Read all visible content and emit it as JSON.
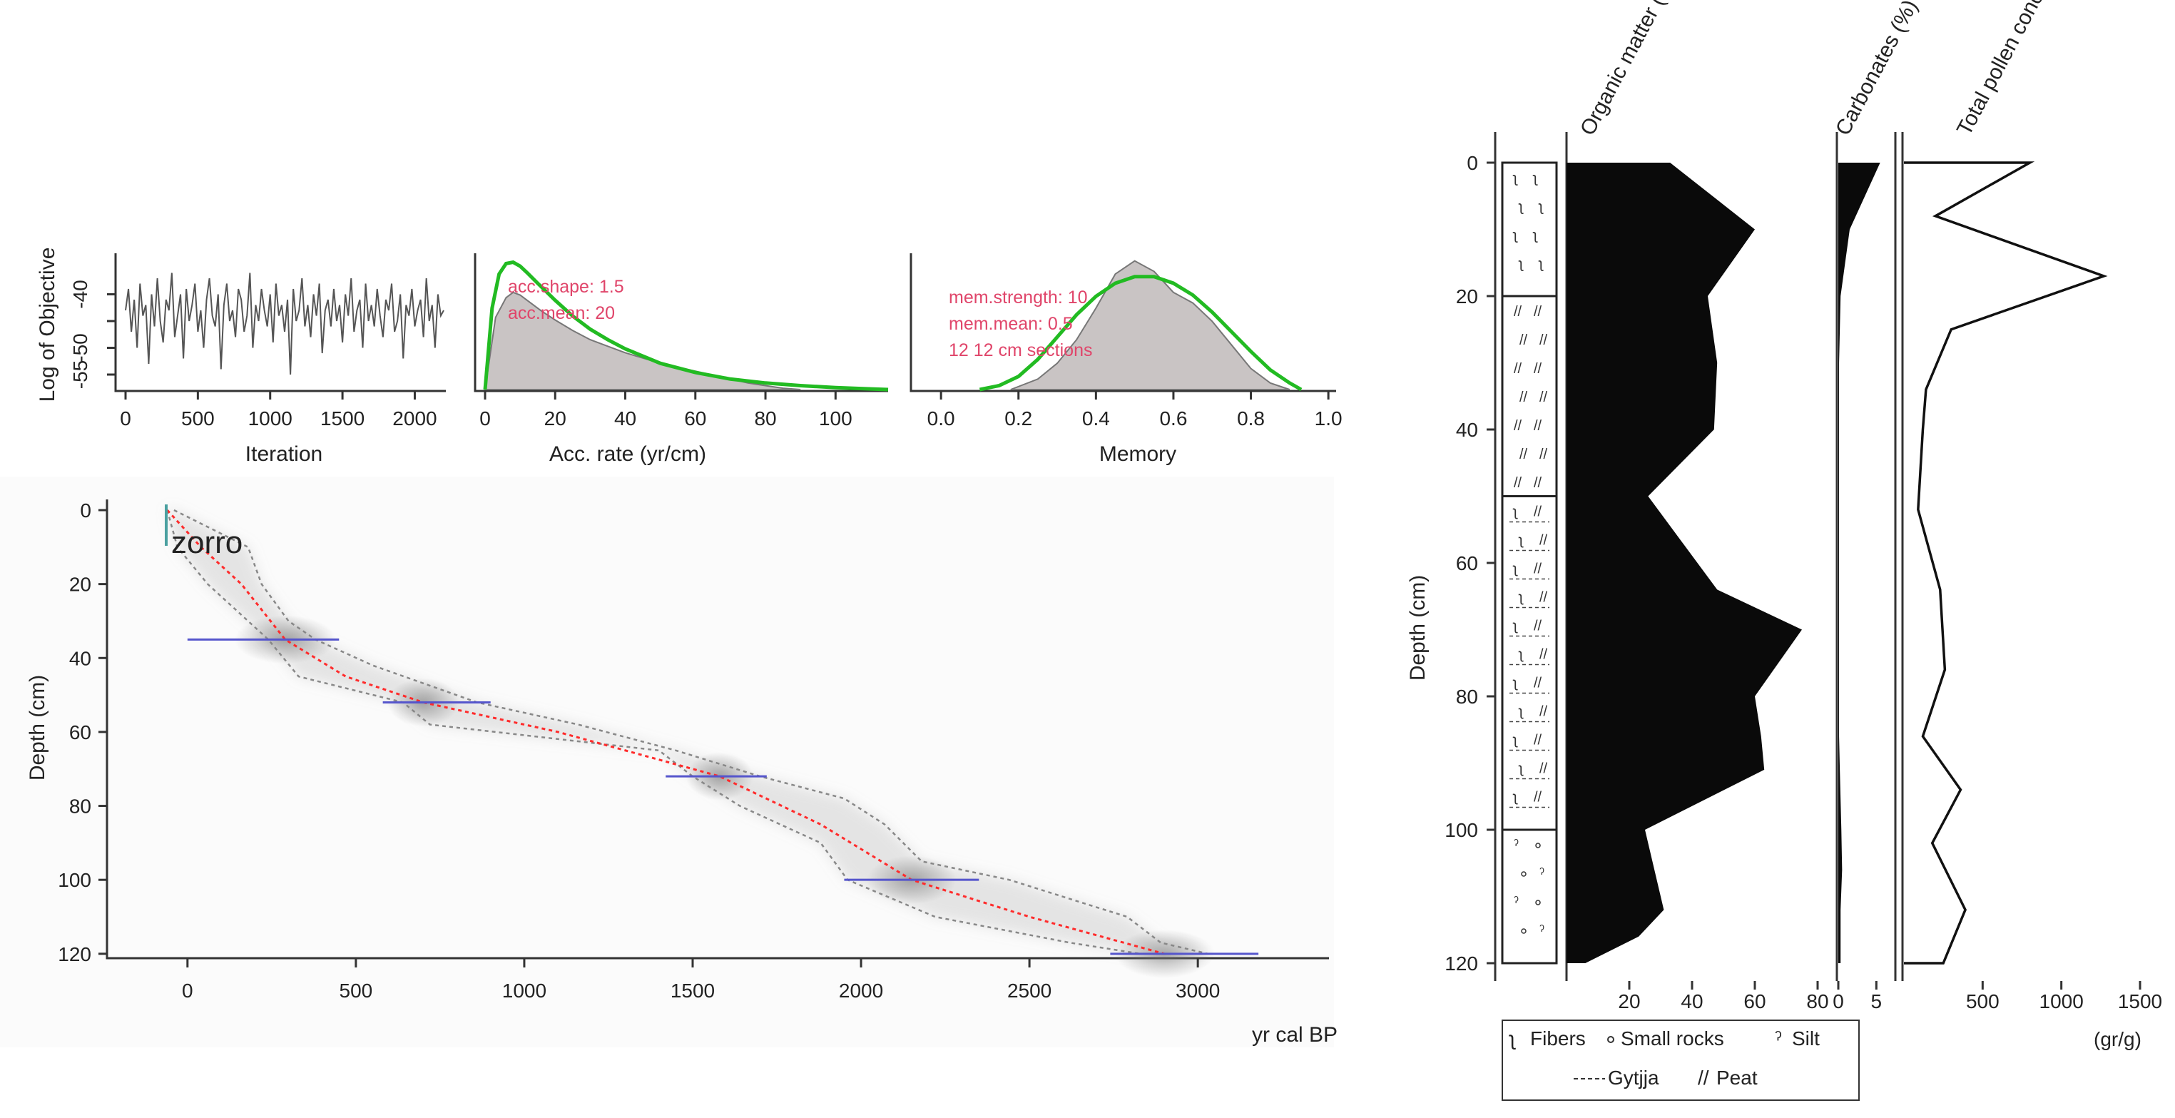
{
  "chart_data": [
    {
      "type": "line",
      "id": "trace",
      "title": "",
      "xlabel": "Iteration",
      "ylabel": "Log of Objective",
      "xlim": [
        0,
        2200
      ],
      "ylim": [
        -57,
        -33
      ],
      "xticks": [
        0,
        500,
        1000,
        1500,
        2000
      ],
      "yticks": [
        -40,
        -45,
        -50,
        -55
      ],
      "ytick_labels": [
        "-40",
        "",
        "-50",
        "-55"
      ],
      "series": [
        {
          "name": "log objective",
          "color": "#555555",
          "x_step": 20,
          "values": [
            -43,
            -39,
            -47,
            -41,
            -50,
            -38,
            -44,
            -42,
            -53,
            -40,
            -46,
            -37,
            -45,
            -49,
            -41,
            -43,
            -36,
            -48,
            -44,
            -40,
            -52,
            -39,
            -45,
            -42,
            -38,
            -47,
            -43,
            -50,
            -41,
            -37,
            -44,
            -46,
            -40,
            -54,
            -42,
            -38,
            -45,
            -43,
            -48,
            -39,
            -41,
            -47,
            -44,
            -36,
            -50,
            -42,
            -45,
            -39,
            -43,
            -46,
            -40,
            -49,
            -38,
            -44,
            -42,
            -47,
            -41,
            -55,
            -39,
            -45,
            -43,
            -37,
            -46,
            -42,
            -48,
            -40,
            -44,
            -38,
            -51,
            -43,
            -41,
            -46,
            -39,
            -45,
            -42,
            -49,
            -40,
            -44,
            -37,
            -47,
            -43,
            -41,
            -50,
            -38,
            -45,
            -42,
            -46,
            -39,
            -44,
            -48,
            -41,
            -43,
            -38,
            -47,
            -45,
            -40,
            -52,
            -42,
            -44,
            -39,
            -46,
            -43,
            -41,
            -48,
            -37,
            -45,
            -42,
            -50,
            -40,
            -44,
            -43
          ]
        }
      ]
    },
    {
      "type": "area",
      "id": "acc-rate",
      "xlabel": "Acc. rate (yr/cm)",
      "xlim": [
        0,
        115
      ],
      "ylim": [
        0,
        1
      ],
      "xticks": [
        0,
        20,
        40,
        60,
        80,
        100
      ],
      "annotations": [
        "acc.shape:  1.5",
        "acc.mean:  20"
      ],
      "series": [
        {
          "name": "posterior",
          "fill": "#c9c4c4",
          "x": [
            0,
            3,
            6,
            8,
            10,
            13,
            16,
            20,
            25,
            30,
            35,
            40,
            45,
            50,
            55,
            60,
            65,
            70,
            75,
            80,
            85,
            90
          ],
          "values": [
            0,
            0.55,
            0.7,
            0.74,
            0.72,
            0.66,
            0.6,
            0.53,
            0.45,
            0.38,
            0.33,
            0.28,
            0.24,
            0.2,
            0.17,
            0.14,
            0.11,
            0.08,
            0.05,
            0.03,
            0.01,
            0
          ]
        },
        {
          "name": "prior",
          "color": "#22bb22",
          "x": [
            0,
            2,
            4,
            6,
            8,
            10,
            12,
            15,
            20,
            25,
            30,
            35,
            40,
            50,
            60,
            70,
            80,
            90,
            100,
            110,
            115
          ],
          "values": [
            0,
            0.62,
            0.88,
            0.96,
            0.97,
            0.94,
            0.89,
            0.81,
            0.68,
            0.56,
            0.46,
            0.38,
            0.31,
            0.2,
            0.13,
            0.08,
            0.05,
            0.03,
            0.015,
            0.005,
            0
          ]
        }
      ]
    },
    {
      "type": "area",
      "id": "memory",
      "xlabel": "Memory",
      "xlim": [
        -0.05,
        1.02
      ],
      "ylim": [
        0,
        1
      ],
      "xticks": [
        0.0,
        0.2,
        0.4,
        0.6,
        0.8,
        1.0
      ],
      "xtick_labels": [
        "0.0",
        "0.2",
        "0.4",
        "0.6",
        "0.8",
        "1.0"
      ],
      "annotations": [
        "mem.strength:  10",
        "mem.mean:  0.5",
        "12 12 cm sections"
      ],
      "series": [
        {
          "name": "posterior",
          "fill": "#c9c4c4",
          "x": [
            0.18,
            0.25,
            0.3,
            0.35,
            0.4,
            0.45,
            0.5,
            0.55,
            0.6,
            0.65,
            0.7,
            0.75,
            0.8,
            0.85,
            0.9
          ],
          "values": [
            0,
            0.08,
            0.2,
            0.38,
            0.62,
            0.88,
            0.98,
            0.9,
            0.74,
            0.66,
            0.52,
            0.34,
            0.16,
            0.05,
            0
          ]
        },
        {
          "name": "prior",
          "color": "#22bb22",
          "x": [
            0.1,
            0.15,
            0.2,
            0.25,
            0.3,
            0.35,
            0.4,
            0.45,
            0.5,
            0.55,
            0.6,
            0.65,
            0.7,
            0.75,
            0.8,
            0.85,
            0.9,
            0.93
          ],
          "values": [
            0,
            0.03,
            0.1,
            0.23,
            0.4,
            0.57,
            0.71,
            0.81,
            0.86,
            0.86,
            0.81,
            0.72,
            0.59,
            0.44,
            0.29,
            0.15,
            0.05,
            0
          ]
        }
      ]
    },
    {
      "type": "line",
      "id": "age-depth",
      "title": "zorro",
      "xlabel": "yr cal BP",
      "ylabel": "Depth (cm)",
      "xlim": [
        -150,
        3400
      ],
      "ylim": [
        0,
        121
      ],
      "xticks": [
        0,
        500,
        1000,
        1500,
        2000,
        2500,
        3000
      ],
      "yticks": [
        0,
        20,
        40,
        60,
        80,
        100,
        120
      ],
      "mean_line": {
        "color": "#ff2b2b",
        "depth": [
          0,
          10,
          20,
          35,
          45,
          52,
          60,
          72,
          85,
          100,
          110,
          120
        ],
        "age": [
          -60,
          40,
          160,
          290,
          470,
          700,
          1100,
          1580,
          1880,
          2150,
          2500,
          2900
        ]
      },
      "range_min": {
        "depth": [
          0,
          10,
          20,
          30,
          35,
          45,
          52,
          58,
          65,
          72,
          80,
          90,
          100,
          110,
          117,
          120
        ],
        "age": [
          -60,
          -30,
          60,
          180,
          240,
          330,
          640,
          720,
          1400,
          1500,
          1640,
          1880,
          1960,
          2220,
          2620,
          2830
        ]
      },
      "range_max": {
        "depth": [
          0,
          10,
          20,
          30,
          35,
          42,
          52,
          58,
          65,
          72,
          78,
          85,
          95,
          100,
          110,
          117,
          120
        ],
        "age": [
          -40,
          180,
          220,
          300,
          380,
          550,
          860,
          1160,
          1450,
          1700,
          1950,
          2070,
          2180,
          2440,
          2790,
          2890,
          3030
        ]
      },
      "dates": [
        {
          "depth": 35,
          "age": 290,
          "min": 0,
          "max": 450
        },
        {
          "depth": 52,
          "age": 700,
          "min": 580,
          "max": 900
        },
        {
          "depth": 72,
          "age": 1580,
          "min": 1420,
          "max": 1720
        },
        {
          "depth": 100,
          "age": 2150,
          "min": 1950,
          "max": 2350
        },
        {
          "depth": 120,
          "age": 2900,
          "min": 2740,
          "max": 3180
        }
      ],
      "colors": {
        "date": "#5555cc",
        "range": "#888888",
        "shade": "#9a9a9a"
      }
    },
    {
      "type": "area",
      "id": "stratigraphy",
      "ylabel": "Depth (cm)",
      "ylim": [
        0,
        120
      ],
      "yticks": [
        0,
        20,
        40,
        60,
        80,
        100,
        120
      ],
      "depth": [
        0,
        10,
        20,
        30,
        40,
        50,
        57,
        64,
        70,
        80,
        86,
        91,
        100,
        106,
        112,
        116,
        120
      ],
      "organic": {
        "label": "Organic matter (%)",
        "xlim": [
          0,
          80
        ],
        "xticks": [
          20,
          40,
          60,
          80
        ],
        "values": [
          33,
          60,
          45,
          48,
          47,
          26,
          37,
          48,
          75,
          60,
          62,
          63,
          25,
          28,
          31,
          23,
          6
        ]
      },
      "carbonates": {
        "label": "Carbonates (%)",
        "xlim": [
          0,
          6
        ],
        "xticks": [
          0,
          5
        ],
        "values": [
          5.5,
          1.5,
          0.3,
          0.1,
          0.1,
          0.1,
          0.1,
          0.1,
          0.1,
          0.1,
          0.1,
          0.2,
          0.4,
          0.5,
          0.3,
          0.3,
          0.3
        ]
      },
      "pollen_depth": [
        0,
        8,
        17,
        25,
        34,
        40,
        52,
        64,
        76,
        86,
        94,
        102,
        112,
        120
      ],
      "pollen": {
        "label": "Total pollen concentration",
        "unit": "(gr/g)",
        "xlim": [
          0,
          1500
        ],
        "xticks": [
          500,
          1000,
          1500
        ],
        "values": [
          800,
          200,
          1270,
          300,
          140,
          120,
          90,
          230,
          260,
          120,
          360,
          180,
          390,
          250
        ]
      },
      "zones": [
        {
          "top": 0,
          "bottom": 20,
          "pattern": "fibers"
        },
        {
          "top": 20,
          "bottom": 50,
          "pattern": "peat"
        },
        {
          "top": 50,
          "bottom": 100,
          "pattern": "gyttja"
        },
        {
          "top": 100,
          "bottom": 120,
          "pattern": "silt"
        }
      ],
      "legend": [
        "Fibers",
        "Small rocks",
        "Silt",
        "Gytjja",
        "Peat"
      ]
    }
  ]
}
